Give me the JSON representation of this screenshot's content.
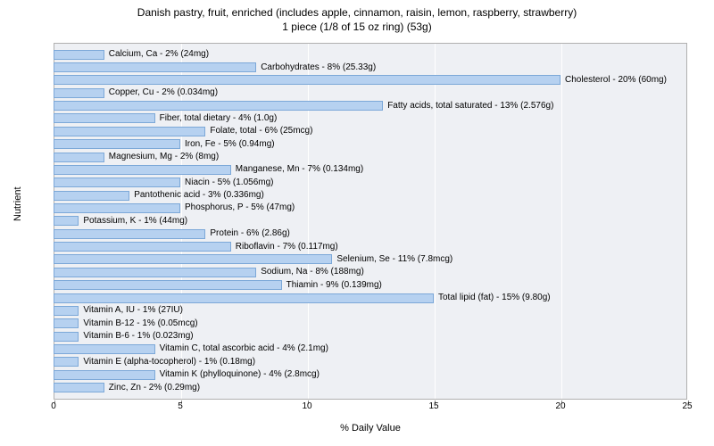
{
  "chart": {
    "type": "bar",
    "title_line1": "Danish pastry, fruit, enriched (includes apple, cinnamon, raisin, lemon, raspberry, strawberry)",
    "title_line2": "1 piece (1/8 of 15 oz ring) (53g)",
    "title_fontsize": 12,
    "xlabel": "% Daily Value",
    "ylabel": "Nutrient",
    "label_fontsize": 11,
    "xlim": [
      0,
      25
    ],
    "xtick_step": 5,
    "xticks": [
      "0",
      "5",
      "10",
      "15",
      "20",
      "25"
    ],
    "background_color": "#ffffff",
    "plot_background": "#eef0f4",
    "grid_color": "#ffffff",
    "bar_color": "#b6d1f0",
    "bar_border_color": "#7ca8d8",
    "plot_border_color": "#b0b0b0",
    "bar_label_fontsize": 10,
    "tick_fontsize": 10,
    "bars": [
      {
        "label": "Calcium, Ca - 2% (24mg)",
        "value": 2
      },
      {
        "label": "Carbohydrates - 8% (25.33g)",
        "value": 8
      },
      {
        "label": "Cholesterol - 20% (60mg)",
        "value": 20
      },
      {
        "label": "Copper, Cu - 2% (0.034mg)",
        "value": 2
      },
      {
        "label": "Fatty acids, total saturated - 13% (2.576g)",
        "value": 13
      },
      {
        "label": "Fiber, total dietary - 4% (1.0g)",
        "value": 4
      },
      {
        "label": "Folate, total - 6% (25mcg)",
        "value": 6
      },
      {
        "label": "Iron, Fe - 5% (0.94mg)",
        "value": 5
      },
      {
        "label": "Magnesium, Mg - 2% (8mg)",
        "value": 2
      },
      {
        "label": "Manganese, Mn - 7% (0.134mg)",
        "value": 7
      },
      {
        "label": "Niacin - 5% (1.056mg)",
        "value": 5
      },
      {
        "label": "Pantothenic acid - 3% (0.336mg)",
        "value": 3
      },
      {
        "label": "Phosphorus, P - 5% (47mg)",
        "value": 5
      },
      {
        "label": "Potassium, K - 1% (44mg)",
        "value": 1
      },
      {
        "label": "Protein - 6% (2.86g)",
        "value": 6
      },
      {
        "label": "Riboflavin - 7% (0.117mg)",
        "value": 7
      },
      {
        "label": "Selenium, Se - 11% (7.8mcg)",
        "value": 11
      },
      {
        "label": "Sodium, Na - 8% (188mg)",
        "value": 8
      },
      {
        "label": "Thiamin - 9% (0.139mg)",
        "value": 9
      },
      {
        "label": "Total lipid (fat) - 15% (9.80g)",
        "value": 15
      },
      {
        "label": "Vitamin A, IU - 1% (27IU)",
        "value": 1
      },
      {
        "label": "Vitamin B-12 - 1% (0.05mcg)",
        "value": 1
      },
      {
        "label": "Vitamin B-6 - 1% (0.023mg)",
        "value": 1
      },
      {
        "label": "Vitamin C, total ascorbic acid - 4% (2.1mg)",
        "value": 4
      },
      {
        "label": "Vitamin E (alpha-tocopherol) - 1% (0.18mg)",
        "value": 1
      },
      {
        "label": "Vitamin K (phylloquinone) - 4% (2.8mcg)",
        "value": 4
      },
      {
        "label": "Zinc, Zn - 2% (0.29mg)",
        "value": 2
      }
    ]
  }
}
